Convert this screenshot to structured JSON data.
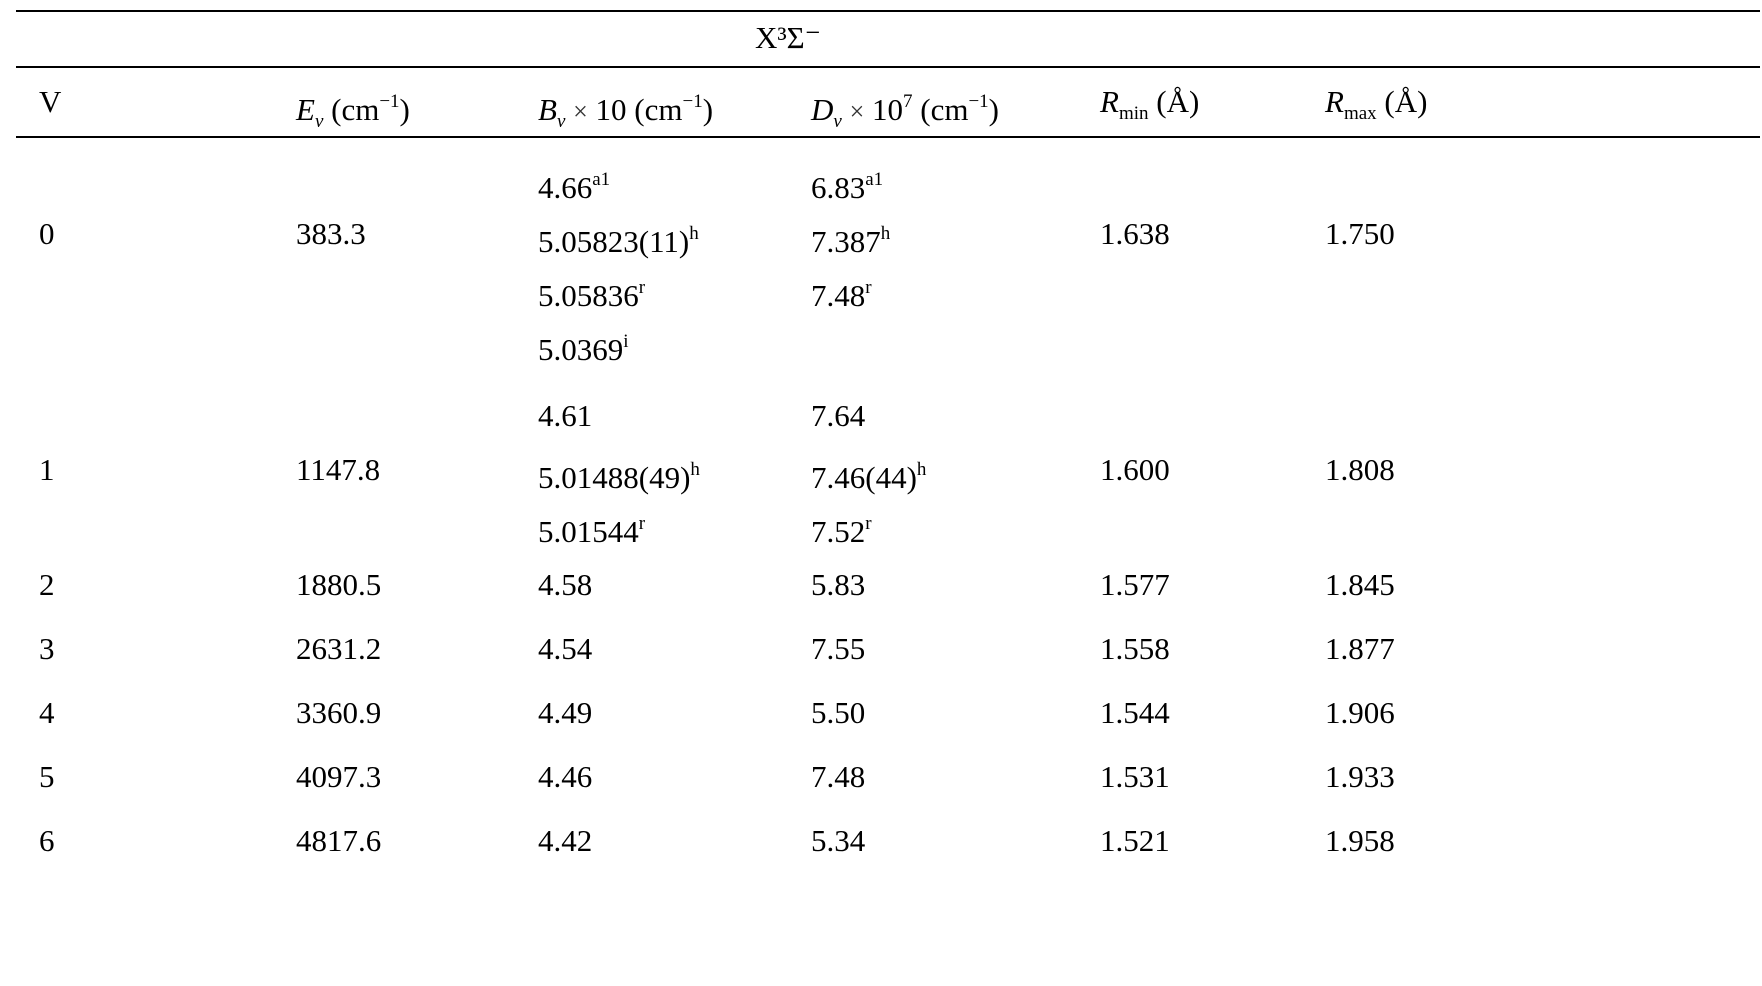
{
  "table": {
    "state_label": "X³Σ⁻",
    "headers": {
      "v": "V",
      "ev": {
        "symbol": "E",
        "sub": "v",
        "unit": "(cm",
        "unit_exp": "−1",
        "unit_end": ")"
      },
      "bv": {
        "symbol": "B",
        "sub": "v",
        "times": "×",
        "factor": "10",
        "unit": "(cm",
        "unit_exp": "−1",
        "unit_end": ")"
      },
      "dv": {
        "symbol": "D",
        "sub": "v",
        "times": "×",
        "factor": "10",
        "factor_exp": "7",
        "unit": "(cm",
        "unit_exp": "−1",
        "unit_end": ")"
      },
      "rmin": {
        "symbol": "R",
        "sub": "min",
        "unit": "(Å)"
      },
      "rmax": {
        "symbol": "R",
        "sub": "max",
        "unit": "(Å)"
      }
    },
    "rows": [
      {
        "v": "0",
        "ev": "383.3",
        "rmin": "1.638",
        "rmax": "1.750",
        "bv": [
          {
            "value": "4.66",
            "sup": "a1"
          },
          {
            "value": "5.05823(11)",
            "sup": "h"
          },
          {
            "value": "5.05836",
            "sup": "r"
          },
          {
            "value": "5.0369",
            "sup": "i"
          }
        ],
        "dv": [
          {
            "value": "6.83",
            "sup": "a1"
          },
          {
            "value": "7.387",
            "sup": "h"
          },
          {
            "value": "7.48",
            "sup": "r"
          }
        ]
      },
      {
        "v": "1",
        "ev": "1147.8",
        "rmin": "1.600",
        "rmax": "1.808",
        "bv": [
          {
            "value": "4.61",
            "sup": ""
          },
          {
            "value": "5.01488(49)",
            "sup": "h"
          },
          {
            "value": "5.01544",
            "sup": "r"
          }
        ],
        "dv": [
          {
            "value": "7.64",
            "sup": ""
          },
          {
            "value": "7.46(44)",
            "sup": "h"
          },
          {
            "value": "7.52",
            "sup": "r"
          }
        ]
      },
      {
        "v": "2",
        "ev": "1880.5",
        "bv": [
          {
            "value": "4.58",
            "sup": ""
          }
        ],
        "dv": [
          {
            "value": "5.83",
            "sup": ""
          }
        ],
        "rmin": "1.577",
        "rmax": "1.845"
      },
      {
        "v": "3",
        "ev": "2631.2",
        "bv": [
          {
            "value": "4.54",
            "sup": ""
          }
        ],
        "dv": [
          {
            "value": "7.55",
            "sup": ""
          }
        ],
        "rmin": "1.558",
        "rmax": "1.877"
      },
      {
        "v": "4",
        "ev": "3360.9",
        "bv": [
          {
            "value": "4.49",
            "sup": ""
          }
        ],
        "dv": [
          {
            "value": "5.50",
            "sup": ""
          }
        ],
        "rmin": "1.544",
        "rmax": "1.906"
      },
      {
        "v": "5",
        "ev": "4097.3",
        "bv": [
          {
            "value": "4.46",
            "sup": ""
          }
        ],
        "dv": [
          {
            "value": "7.48",
            "sup": ""
          }
        ],
        "rmin": "1.531",
        "rmax": "1.933"
      },
      {
        "v": "6",
        "ev": "4817.6",
        "bv": [
          {
            "value": "4.42",
            "sup": ""
          }
        ],
        "dv": [
          {
            "value": "5.34",
            "sup": ""
          }
        ],
        "rmin": "1.521",
        "rmax": "1.958"
      }
    ]
  }
}
